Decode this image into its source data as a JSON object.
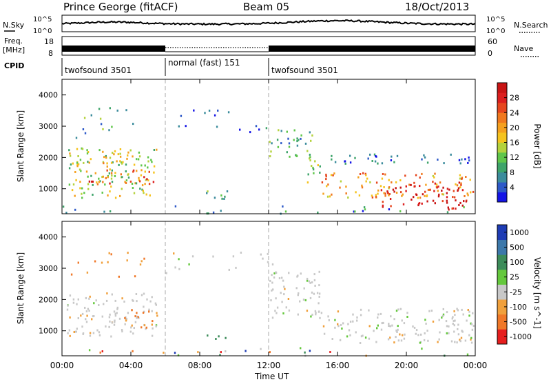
{
  "header": {
    "station": "Prince George (fitACF)",
    "beam": "Beam 05",
    "date": "18/Oct/2013"
  },
  "noise_panel": {
    "left_label": "N.Sky",
    "right_label": "N.Search",
    "tick_top": "10^5",
    "tick_bottom": "10^0"
  },
  "freq_panel": {
    "left_label_1": "Freq.",
    "left_label_2": "[MHz]",
    "left_tick_top": "18",
    "left_tick_bottom": "8",
    "right_label": "Nave",
    "right_tick_top": "60",
    "right_tick_bottom": "0"
  },
  "cpid": {
    "label": "CPID",
    "segments": [
      {
        "name": "twofsound 3501",
        "start_hour": 0,
        "end_hour": 6
      },
      {
        "name": "normal (fast) 151",
        "start_hour": 6,
        "end_hour": 12
      },
      {
        "name": "twofsound 3501",
        "start_hour": 12,
        "end_hour": 24
      }
    ]
  },
  "x_axis": {
    "label": "Time UT",
    "ticks": [
      "00:00",
      "04:00",
      "08:00",
      "12:00",
      "16:00",
      "20:00",
      "00:00"
    ]
  },
  "chart_data": [
    {
      "type": "heatmap",
      "panel": "power",
      "xlabel": "Time UT",
      "ylabel": "Slant Range [km]",
      "y_ticks": [
        "1000",
        "2000",
        "3000",
        "4000"
      ],
      "xlim_hours": [
        0,
        24
      ],
      "ylim_km": [
        200,
        4500
      ],
      "colorbar_label": "Power [dB]",
      "colorbar_ticks": [
        "4",
        "8",
        "12",
        "16",
        "20",
        "24",
        "28"
      ],
      "colorbar_colors": [
        "#1414e6",
        "#2d59c8",
        "#3b8c9c",
        "#3ea46a",
        "#5fc64a",
        "#b4d23c",
        "#f5c31e",
        "#f5a01e",
        "#f0781e",
        "#e6461e",
        "#dc1e1e",
        "#c81414"
      ],
      "regions": [
        {
          "t0": 0.3,
          "t1": 5.5,
          "r0": 700,
          "r1": 2300,
          "level": 0.45
        },
        {
          "t0": 2.5,
          "t1": 5.5,
          "r0": 1100,
          "r1": 1600,
          "level": 0.75
        },
        {
          "t0": 1.3,
          "t1": 2.8,
          "r0": 1050,
          "r1": 1350,
          "level": 0.8
        },
        {
          "t0": 0.8,
          "t1": 3.8,
          "r0": 1800,
          "r1": 2250,
          "level": 0.55
        },
        {
          "t0": 0.5,
          "t1": 4.5,
          "r0": 2600,
          "r1": 3600,
          "level": 0.3,
          "sparse": true
        },
        {
          "t0": 6.0,
          "t1": 9.8,
          "r0": 2900,
          "r1": 3550,
          "level": 0.15,
          "sparse": true
        },
        {
          "t0": 9.8,
          "t1": 12.5,
          "r0": 2800,
          "r1": 3300,
          "level": 0.2,
          "sparse": true
        },
        {
          "t0": 12.0,
          "t1": 14.5,
          "r0": 2000,
          "r1": 2900,
          "level": 0.3
        },
        {
          "t0": 14.0,
          "t1": 15.0,
          "r0": 1200,
          "r1": 2100,
          "level": 0.4
        },
        {
          "t0": 15.0,
          "t1": 24.0,
          "r0": 700,
          "r1": 1500,
          "level": 0.65
        },
        {
          "t0": 18.5,
          "t1": 23.5,
          "r0": 300,
          "r1": 1200,
          "level": 0.95
        },
        {
          "t0": 15.5,
          "t1": 24.0,
          "r0": 1800,
          "r1": 2100,
          "level": 0.15
        },
        {
          "t0": 8.2,
          "t1": 9.6,
          "r0": 600,
          "r1": 1000,
          "level": 0.35
        },
        {
          "t0": 0.0,
          "t1": 24.0,
          "r0": 200,
          "r1": 450,
          "level": 0.2,
          "sparse": true
        }
      ]
    },
    {
      "type": "heatmap",
      "panel": "velocity",
      "xlabel": "Time UT",
      "ylabel": "Slant Range [km]",
      "y_ticks": [
        "1000",
        "2000",
        "3000",
        "4000"
      ],
      "xlim_hours": [
        0,
        24
      ],
      "ylim_km": [
        200,
        4500
      ],
      "colorbar_label": "Velocity [m s^-1]",
      "colorbar_ticks": [
        "1000",
        "500",
        "100",
        "25",
        "-25",
        "-100",
        "-500",
        "-1000"
      ],
      "colorbar_colors": [
        "#1e3cb4",
        "#3c78aa",
        "#3c8c5a",
        "#64c83c",
        "#c8c8c8",
        "#f0a03c",
        "#f07828",
        "#e61e1e"
      ],
      "regions": [
        {
          "t0": 0.2,
          "t1": 5.5,
          "r0": 800,
          "r1": 2200,
          "v": "ground"
        },
        {
          "t0": 3.5,
          "t1": 5.5,
          "r0": 1100,
          "r1": 1700,
          "v": "neg"
        },
        {
          "t0": 0.5,
          "t1": 4.8,
          "r0": 2600,
          "r1": 3500,
          "v": "neg",
          "sparse": true
        },
        {
          "t0": 6.0,
          "t1": 12.5,
          "r0": 2800,
          "r1": 3500,
          "v": "ground",
          "sparse": true
        },
        {
          "t0": 12.0,
          "t1": 15.0,
          "r0": 1400,
          "r1": 2900,
          "v": "ground"
        },
        {
          "t0": 15.0,
          "t1": 24.0,
          "r0": 600,
          "r1": 1700,
          "v": "ground"
        },
        {
          "t0": 8.2,
          "t1": 9.6,
          "r0": 700,
          "r1": 900,
          "v": "pos"
        },
        {
          "t0": 0.0,
          "t1": 24.0,
          "r0": 200,
          "r1": 450,
          "v": "mixed",
          "sparse": true
        }
      ]
    }
  ]
}
